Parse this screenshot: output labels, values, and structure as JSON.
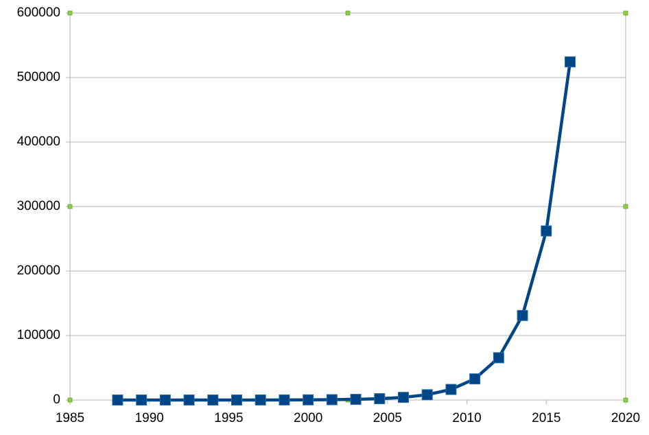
{
  "chart_data": {
    "type": "line",
    "x": [
      1988,
      1989.5,
      1991,
      1992.5,
      1994,
      1995.5,
      1997,
      1998.5,
      2000,
      2001.5,
      2003,
      2004.5,
      2006,
      2007.5,
      2009,
      2010.5,
      2012,
      2013.5,
      2015,
      2016.5
    ],
    "series": [
      {
        "color": "#004586",
        "values": [
          1,
          2,
          4,
          8,
          16,
          32,
          64,
          128,
          256,
          512,
          1024,
          2048,
          4096,
          8192,
          16384,
          32768,
          65536,
          131072,
          262144,
          524288
        ]
      }
    ],
    "xlim": [
      1985,
      2020
    ],
    "xticks": [
      1985,
      1990,
      1995,
      2000,
      2005,
      2010,
      2015,
      2020
    ],
    "ylim": [
      0,
      600000
    ],
    "yticks": [
      0,
      100000,
      200000,
      300000,
      400000,
      500000,
      600000
    ],
    "grid": true
  }
}
